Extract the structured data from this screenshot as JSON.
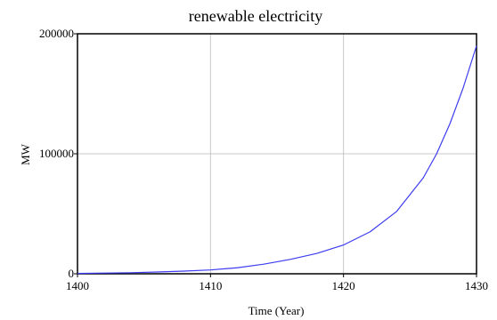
{
  "chart_data": {
    "type": "line",
    "title": "renewable electricity",
    "xlabel": "Time (Year)",
    "ylabel": "MW",
    "xlim": [
      1400,
      1430
    ],
    "ylim": [
      0,
      200000
    ],
    "x_ticks": [
      1400,
      1410,
      1420,
      1430
    ],
    "y_ticks": [
      0,
      100000,
      200000
    ],
    "x_tick_labels": [
      "1400",
      "1410",
      "1420",
      "1430"
    ],
    "y_tick_labels": [
      "0",
      "100000",
      "200000"
    ],
    "grid": true,
    "legend": "none",
    "series": [
      {
        "color": "#3c3cf0",
        "x": [
          1400,
          1402,
          1404,
          1406,
          1408,
          1410,
          1412,
          1414,
          1416,
          1418,
          1420,
          1422,
          1424,
          1426,
          1427,
          1428,
          1429,
          1430
        ],
        "values": [
          300,
          600,
          900,
          1500,
          2200,
          3200,
          5000,
          8000,
          12000,
          17000,
          24000,
          35000,
          52000,
          80000,
          100000,
          125000,
          155000,
          190000
        ]
      }
    ]
  }
}
